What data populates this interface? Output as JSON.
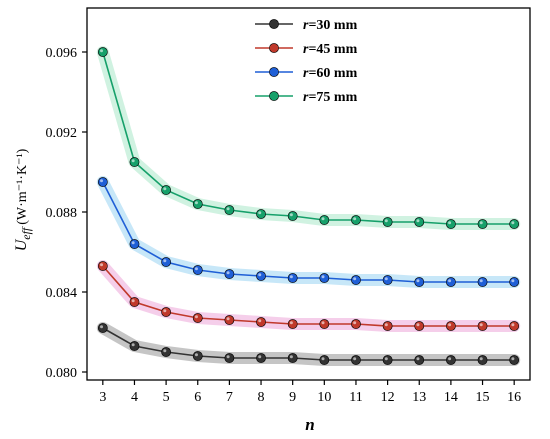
{
  "chart_data": {
    "type": "line",
    "xlabel": "n",
    "ylabel_main": "U",
    "ylabel_sub": "eff",
    "ylabel_unit": "(W·m⁻¹·K⁻¹)",
    "xlim": [
      2.5,
      16.5
    ],
    "ylim": [
      0.0796,
      0.0982
    ],
    "x": [
      3,
      4,
      5,
      6,
      7,
      8,
      9,
      10,
      11,
      12,
      13,
      14,
      15,
      16
    ],
    "x_ticks": [
      "3",
      "4",
      "5",
      "6",
      "7",
      "8",
      "9",
      "10",
      "11",
      "12",
      "13",
      "14",
      "15",
      "16"
    ],
    "y_ticks": [
      0.08,
      0.084,
      0.088,
      0.092,
      0.096
    ],
    "y_tick_labels": [
      "0.080",
      "0.084",
      "0.088",
      "0.092",
      "0.096"
    ],
    "legend_position": "top-center",
    "series": [
      {
        "r": "r",
        "value_label": "=30 mm",
        "color": "#333333",
        "band": "#bbbbbb",
        "values": [
          0.0822,
          0.0813,
          0.081,
          0.0808,
          0.0807,
          0.0807,
          0.0807,
          0.0806,
          0.0806,
          0.0806,
          0.0806,
          0.0806,
          0.0806,
          0.0806
        ]
      },
      {
        "r": "r",
        "value_label": "=45 mm",
        "color": "#c0392b",
        "band": "#f3c6e6",
        "values": [
          0.0853,
          0.0835,
          0.083,
          0.0827,
          0.0826,
          0.0825,
          0.0824,
          0.0824,
          0.0824,
          0.0823,
          0.0823,
          0.0823,
          0.0823,
          0.0823
        ]
      },
      {
        "r": "r",
        "value_label": "=60 mm",
        "color": "#1f5fd6",
        "band": "#bde3f7",
        "values": [
          0.0895,
          0.0864,
          0.0855,
          0.0851,
          0.0849,
          0.0848,
          0.0847,
          0.0847,
          0.0846,
          0.0846,
          0.0845,
          0.0845,
          0.0845,
          0.0845
        ]
      },
      {
        "r": "r",
        "value_label": "=75 mm",
        "color": "#16a06a",
        "band": "#c8f0dc",
        "values": [
          0.096,
          0.0905,
          0.0891,
          0.0884,
          0.0881,
          0.0879,
          0.0878,
          0.0876,
          0.0876,
          0.0875,
          0.0875,
          0.0874,
          0.0874,
          0.0874
        ]
      }
    ]
  }
}
